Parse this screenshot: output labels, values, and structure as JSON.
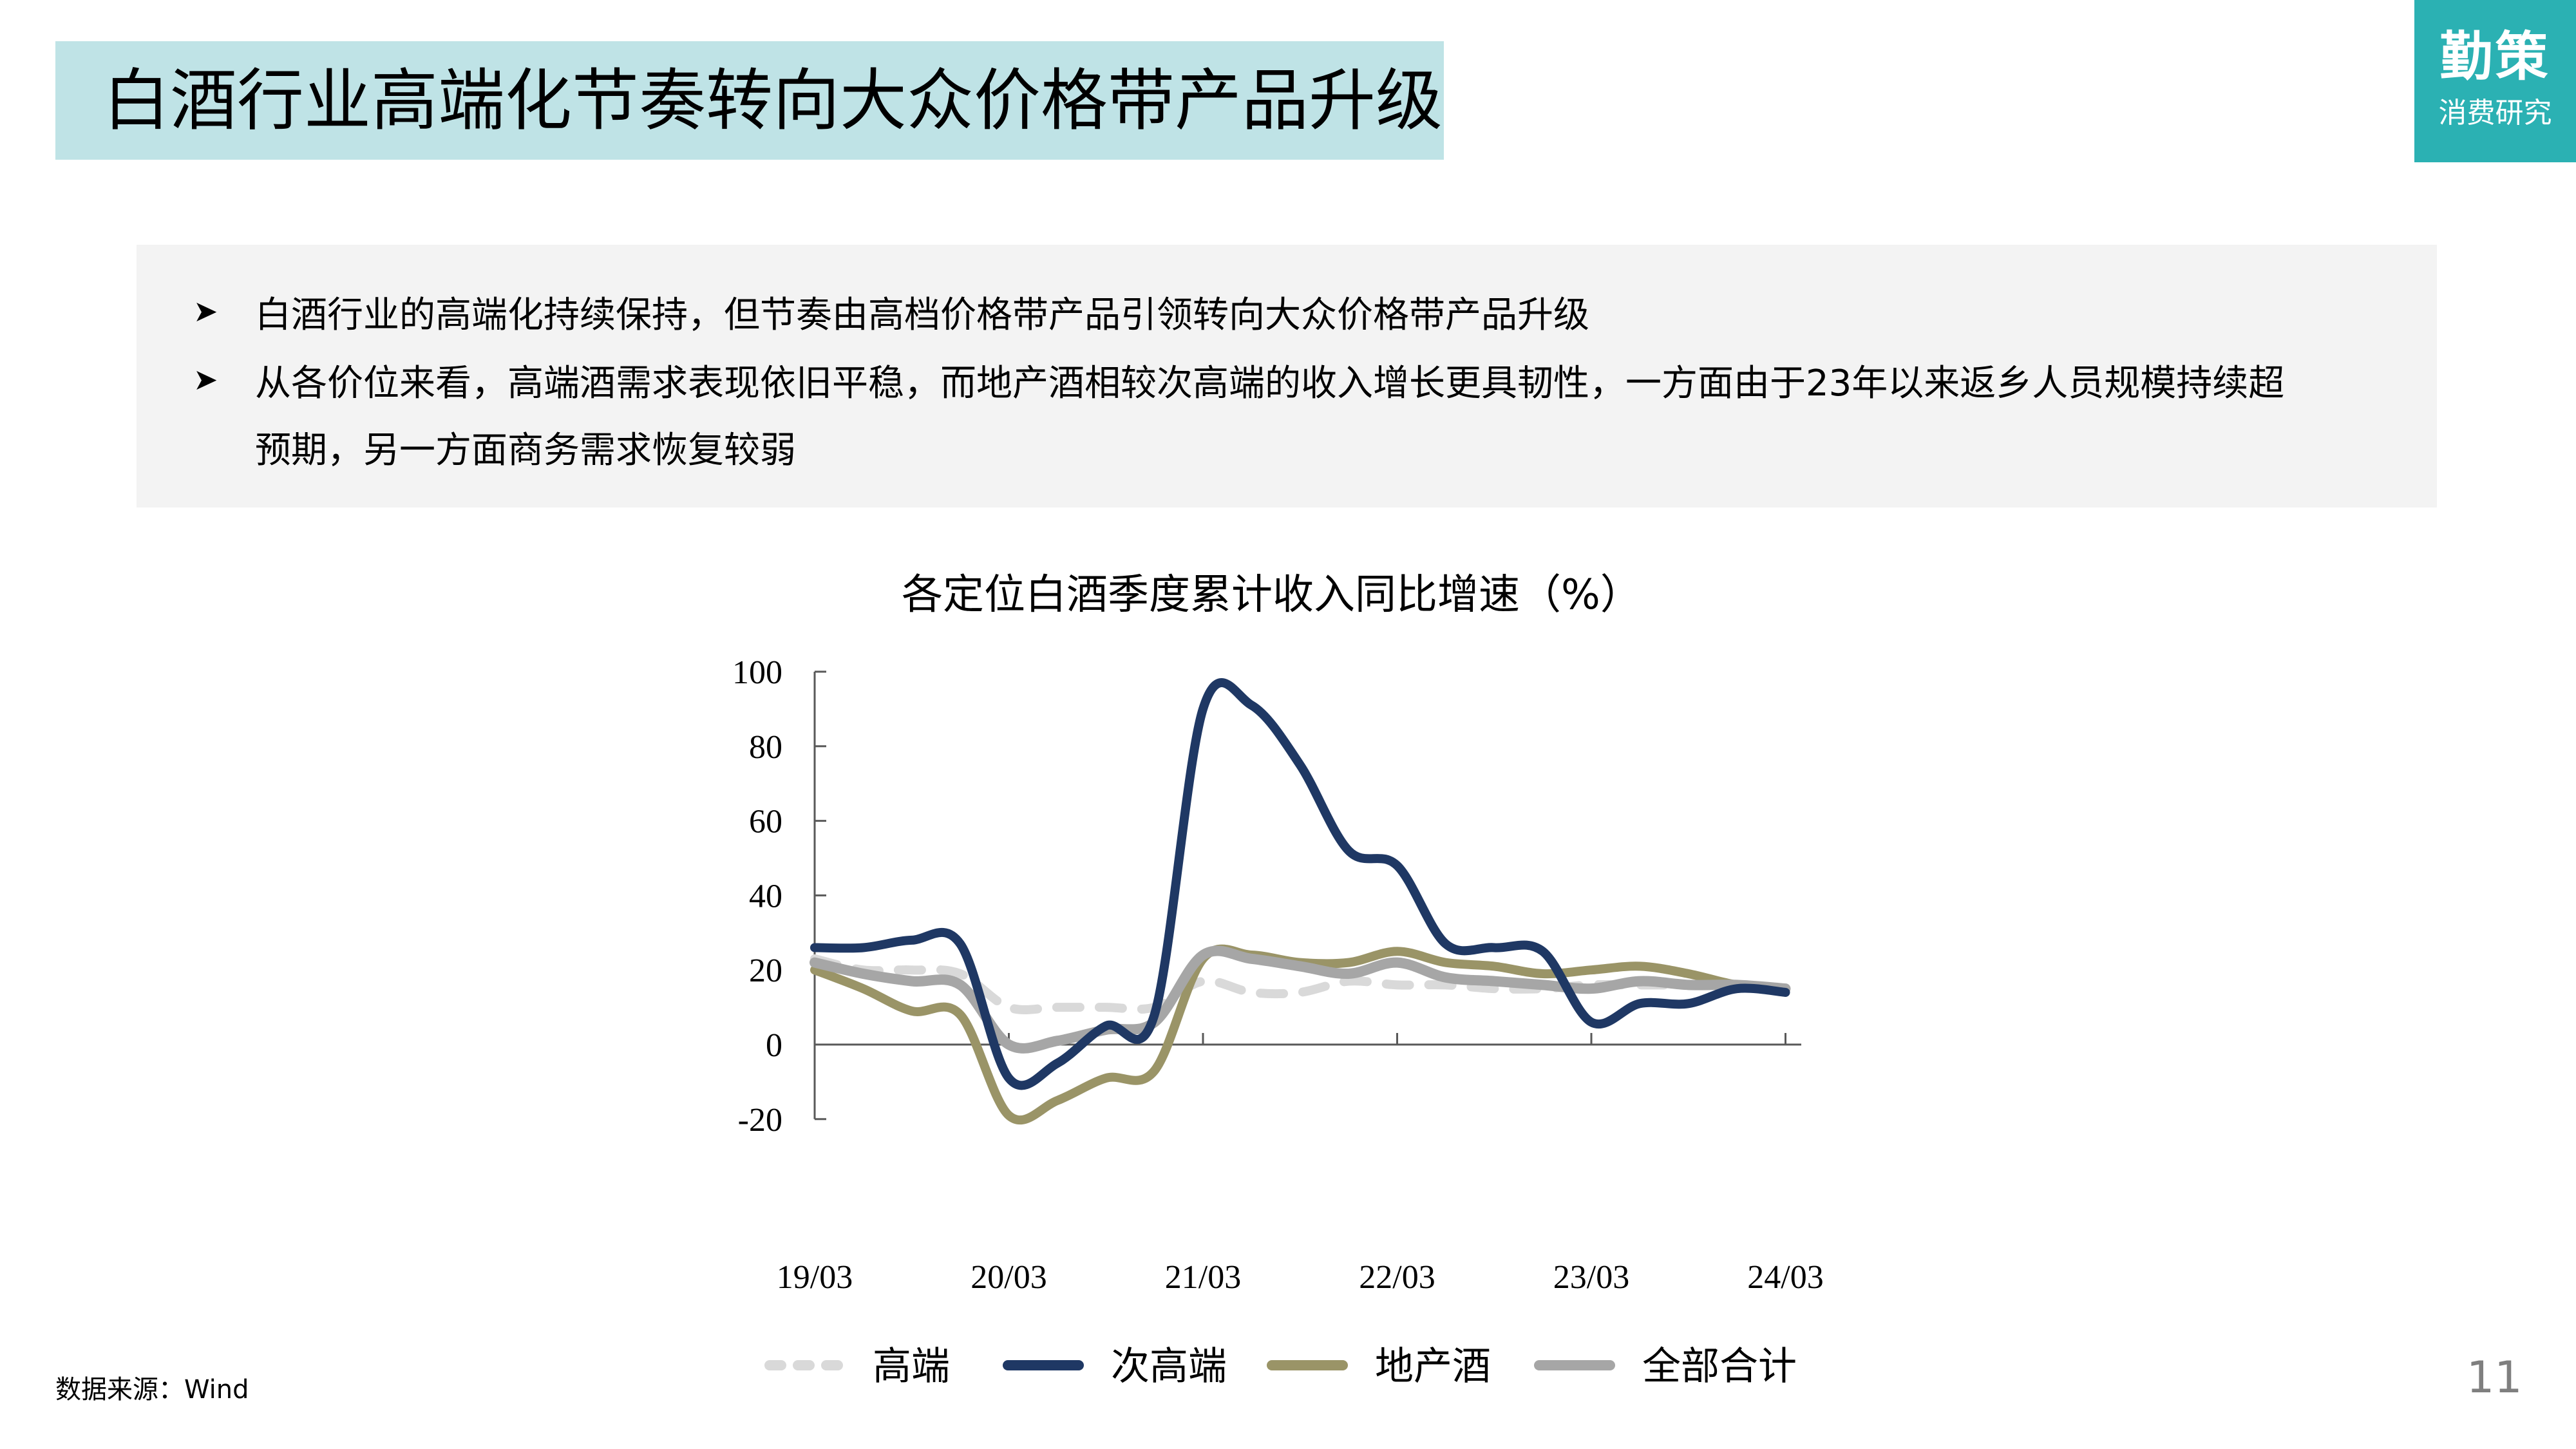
{
  "header": {
    "title": "白酒行业高端化节奏转向大众价格带产品升级",
    "logo": {
      "main": "勤策",
      "sub": "消费研究"
    }
  },
  "summary": {
    "bullet_icon": "arrowhead-bullet-icon",
    "items": [
      "白酒行业的高端化持续保持，但节奏由高档价格带产品引领转向大众价格带产品升级",
      "从各价位来看，高端酒需求表现依旧平稳，而地产酒相较次高端的收入增长更具韧性，一方面由于23年以来返乡人员规模持续超",
      "预期，另一方面商务需求恢复较弱"
    ]
  },
  "footer": {
    "source": "数据来源：Wind",
    "page_number": "11"
  },
  "colors": {
    "title_bg": "#bfe3e6",
    "logo_bg": "#2bb1b3",
    "summary_bg": "#f3f3f3",
    "high_end": "#d9d9d9",
    "sub_high_end": "#1f3864",
    "local": "#9a9467",
    "total": "#a6a6a6"
  },
  "chart_data": {
    "type": "line",
    "title": "各定位白酒季度累计收入同比增速（%）",
    "xlabel": "",
    "ylabel": "%",
    "ylim": [
      -20,
      100
    ],
    "yticks": [
      "100",
      "80",
      "60",
      "40",
      "20",
      "0",
      "-20"
    ],
    "xticks": [
      "19/03",
      "20/03",
      "21/03",
      "22/03",
      "23/03",
      "24/03"
    ],
    "x": [
      "19/03",
      "19/06",
      "19/09",
      "19/12",
      "20/03",
      "20/06",
      "20/09",
      "20/12",
      "21/03",
      "21/06",
      "21/09",
      "21/12",
      "22/03",
      "22/06",
      "22/09",
      "22/12",
      "23/03",
      "23/06",
      "23/09",
      "23/12",
      "24/03"
    ],
    "legend_position": "bottom",
    "grid": false,
    "series": [
      {
        "name": "高端",
        "style": "dashed",
        "color": "#d9d9d9",
        "values": [
          23,
          20,
          20,
          19,
          10,
          10,
          10,
          10,
          17,
          14,
          14,
          17,
          16,
          16,
          15,
          15,
          16,
          16,
          16,
          16,
          15
        ]
      },
      {
        "name": "次高端",
        "style": "solid",
        "color": "#1f3864",
        "values": [
          26,
          26,
          28,
          27,
          -9,
          -5,
          5,
          8,
          90,
          91,
          75,
          52,
          48,
          27,
          26,
          25,
          6,
          11,
          11,
          15,
          14
        ]
      },
      {
        "name": "地产酒",
        "style": "solid",
        "color": "#9a9467",
        "values": [
          20,
          15,
          9,
          8,
          -19,
          -15,
          -9,
          -7,
          23,
          24,
          22,
          22,
          25,
          22,
          21,
          19,
          20,
          21,
          19,
          16,
          15
        ]
      },
      {
        "name": "全部合计",
        "style": "solid",
        "color": "#a6a6a6",
        "values": [
          22,
          19,
          17,
          16,
          0,
          1,
          4,
          6,
          24,
          23,
          21,
          19,
          22,
          18,
          17,
          16,
          15,
          17,
          16,
          16,
          15
        ]
      }
    ]
  }
}
